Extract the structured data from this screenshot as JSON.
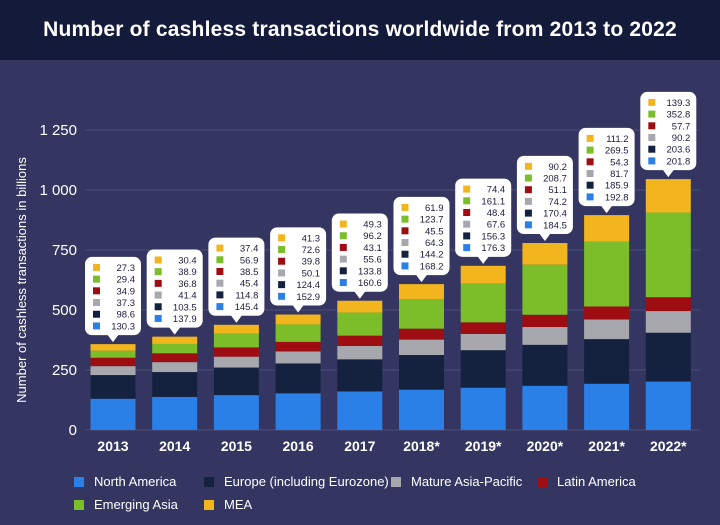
{
  "title": "Number of cashless transactions worldwide from 2013 to 2022",
  "colors": {
    "background": "#343661",
    "title_bar": "#141a3a",
    "grid": "#4c4f7a"
  },
  "chart_data": {
    "type": "bar",
    "stacked": true,
    "title": "Number of cashless transactions worldwide from 2013 to 2022",
    "xlabel": "",
    "ylabel": "Number of cashless transactions in billions",
    "ylim": [
      0,
      1250
    ],
    "yticks": [
      0,
      250,
      500,
      750,
      1000,
      1250
    ],
    "ytick_labels": [
      "0",
      "250",
      "500",
      "750",
      "1 000",
      "1 250"
    ],
    "grid": true,
    "legend_position": "bottom",
    "categories": [
      "2013",
      "2014",
      "2015",
      "2016",
      "2017",
      "2018*",
      "2019*",
      "2020*",
      "2021*",
      "2022*"
    ],
    "series": [
      {
        "name": "North America",
        "color": "#2b80e8",
        "values": [
          130.3,
          137.9,
          145.4,
          152.9,
          160.6,
          168.2,
          176.3,
          184.5,
          192.8,
          201.8
        ]
      },
      {
        "name": "Europe (including Eurozone)",
        "color": "#14223f",
        "values": [
          98.6,
          103.5,
          114.8,
          124.4,
          133.8,
          144.2,
          156.3,
          170.4,
          185.9,
          203.6
        ]
      },
      {
        "name": "Mature Asia-Pacific",
        "color": "#a7a7ae",
        "values": [
          37.3,
          41.4,
          45.4,
          50.1,
          55.6,
          64.3,
          67.6,
          74.2,
          81.7,
          90.2
        ]
      },
      {
        "name": "Latin America",
        "color": "#9e0d12",
        "values": [
          34.9,
          36.8,
          38.5,
          39.8,
          43.1,
          45.5,
          48.4,
          51.1,
          54.3,
          57.7
        ]
      },
      {
        "name": "Emerging Asia",
        "color": "#7cbd2a",
        "values": [
          29.4,
          38.9,
          56.9,
          72.6,
          96.2,
          123.7,
          161.1,
          208.7,
          269.5,
          352.8
        ]
      },
      {
        "name": "MEA",
        "color": "#f2b51e",
        "values": [
          27.3,
          30.4,
          37.4,
          41.3,
          49.3,
          61.9,
          74.4,
          90.2,
          111.2,
          139.3
        ]
      }
    ],
    "label_format": "one-decimal"
  }
}
